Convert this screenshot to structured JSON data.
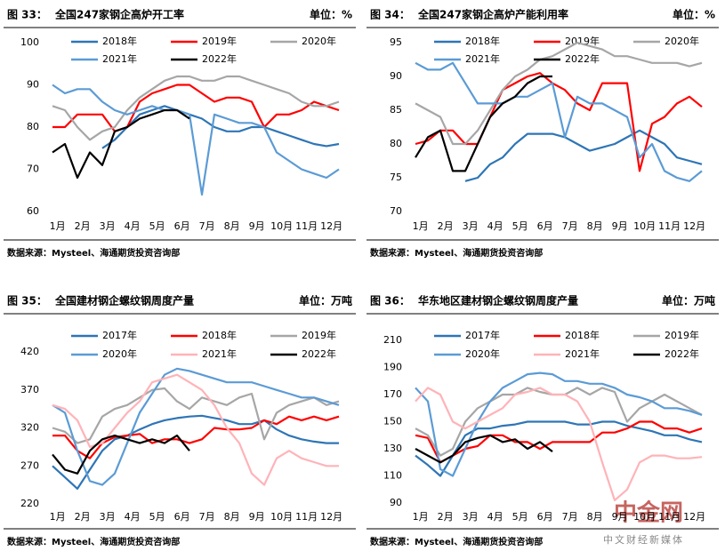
{
  "chart_data": [
    {
      "type": "line",
      "figure_label": "图 33：",
      "title": "全国247家钢企高炉开工率",
      "unit": "单位：%",
      "source": "数据来源：Mysteel、海通期货投资咨询部",
      "categories": [
        "1月",
        null,
        "2月",
        null,
        "3月",
        null,
        "4月",
        null,
        "5月",
        null,
        "6月",
        null,
        "7月",
        null,
        "8月",
        null,
        "9月",
        null,
        "10月",
        null,
        "11月",
        null,
        "12月",
        null
      ],
      "ylim": [
        60,
        100
      ],
      "yticks": [
        60,
        70,
        80,
        90,
        100
      ],
      "grid": false,
      "series": [
        {
          "name": "2018年",
          "color": "#2e75b6",
          "values": [
            null,
            null,
            null,
            null,
            75,
            77,
            80,
            83,
            84,
            85,
            84,
            83,
            82,
            80,
            79,
            79,
            80,
            80,
            79,
            78,
            77,
            76,
            75.5,
            76
          ]
        },
        {
          "name": "2019年",
          "color": "#ff0000",
          "values": [
            80,
            80,
            83,
            83,
            83,
            79,
            80,
            86,
            88,
            89,
            90,
            90,
            88,
            86,
            87,
            87,
            86,
            80,
            83,
            83,
            84,
            86,
            85,
            84
          ]
        },
        {
          "name": "2020年",
          "color": "#a6a6a6",
          "values": [
            85,
            84,
            80,
            77,
            79,
            80,
            84,
            87,
            89,
            91,
            92,
            92,
            91,
            91,
            92,
            92,
            91,
            90,
            89,
            88,
            86,
            85,
            85,
            86
          ]
        },
        {
          "name": "2021年",
          "color": "#5b9bd5",
          "values": [
            90,
            88,
            89,
            89,
            86,
            84,
            83,
            84,
            85,
            84,
            84,
            83,
            64,
            83,
            82,
            81,
            81,
            80,
            74,
            72,
            70,
            69,
            68,
            70
          ]
        },
        {
          "name": "2022年",
          "color": "#000000",
          "values": [
            74,
            76,
            68,
            74,
            71,
            79,
            80,
            82,
            83,
            84,
            84,
            82,
            null,
            null,
            null,
            null,
            null,
            null,
            null,
            null,
            null,
            null,
            null,
            null
          ]
        }
      ]
    },
    {
      "type": "line",
      "figure_label": "图 34：",
      "title": "全国247家钢企高炉产能利用率",
      "unit": "单位：%",
      "source": "数据来源：Mysteel、海通期货投资咨询部",
      "categories": [
        "1月",
        null,
        "2月",
        null,
        "3月",
        null,
        "4月",
        null,
        "5月",
        null,
        "6月",
        null,
        "7月",
        null,
        "8月",
        null,
        "9月",
        null,
        "10月",
        null,
        "11月",
        null,
        "12月",
        null
      ],
      "ylim": [
        70,
        95
      ],
      "yticks": [
        70,
        75,
        80,
        85,
        90,
        95
      ],
      "grid": false,
      "series": [
        {
          "name": "2018年",
          "color": "#2e75b6",
          "values": [
            null,
            null,
            null,
            null,
            74.5,
            75,
            77,
            78,
            80,
            81.5,
            81.5,
            81.5,
            81,
            80,
            79,
            79.5,
            80,
            81,
            82,
            81,
            80,
            78,
            77.5,
            77
          ]
        },
        {
          "name": "2019年",
          "color": "#ff0000",
          "values": [
            80,
            80.5,
            82,
            82,
            80,
            80,
            84,
            88,
            89,
            90,
            90.5,
            89,
            88,
            86,
            85,
            89,
            89,
            89,
            76,
            83,
            84,
            86,
            87,
            85.5
          ]
        },
        {
          "name": "2020年",
          "color": "#a6a6a6",
          "values": [
            86,
            85,
            84,
            80,
            80,
            82,
            85,
            88,
            90,
            91,
            92.5,
            93,
            94,
            95,
            94.5,
            94,
            93,
            93,
            92.5,
            92,
            92,
            92,
            91.5,
            92
          ]
        },
        {
          "name": "2021年",
          "color": "#5b9bd5",
          "values": [
            92,
            91,
            91,
            92,
            89,
            86,
            86,
            86,
            87,
            87,
            88,
            89,
            81,
            87,
            86,
            86,
            85,
            84,
            78,
            80,
            76,
            75,
            74.5,
            76
          ]
        },
        {
          "name": "2022年",
          "color": "#000000",
          "values": [
            78,
            81,
            82,
            76,
            76,
            80,
            84,
            86,
            87,
            89,
            90,
            90,
            null,
            null,
            null,
            null,
            null,
            null,
            null,
            null,
            null,
            null,
            null,
            null
          ]
        }
      ]
    },
    {
      "type": "line",
      "figure_label": "图 35：",
      "title": "全国建材钢企螺纹钢周度产量",
      "unit": "单位：万吨",
      "source": "数据来源：Mysteel、海通期货投资咨询部",
      "categories": [
        "1月",
        null,
        "2月",
        null,
        "3月",
        null,
        "4月",
        null,
        "5月",
        null,
        "6月",
        null,
        "7月",
        null,
        "8月",
        null,
        "9月",
        null,
        "10月",
        null,
        "11月",
        null,
        "12月",
        null
      ],
      "ylim": [
        220,
        420
      ],
      "yticks": [
        220,
        270,
        320,
        370,
        420
      ],
      "grid": false,
      "series": [
        {
          "name": "2017年",
          "color": "#2e75b6",
          "values": [
            270,
            255,
            240,
            265,
            290,
            305,
            310,
            318,
            325,
            330,
            333,
            335,
            336,
            333,
            330,
            325,
            325,
            330,
            318,
            310,
            305,
            302,
            300,
            300
          ]
        },
        {
          "name": "2018年",
          "color": "#ff0000",
          "values": [
            310,
            310,
            290,
            280,
            300,
            308,
            310,
            312,
            300,
            305,
            305,
            300,
            305,
            320,
            318,
            318,
            320,
            330,
            325,
            335,
            330,
            335,
            330,
            335
          ]
        },
        {
          "name": "2019年",
          "color": "#a6a6a6",
          "values": [
            320,
            315,
            300,
            305,
            335,
            345,
            350,
            360,
            370,
            372,
            355,
            345,
            360,
            355,
            350,
            360,
            365,
            305,
            340,
            350,
            355,
            360,
            350,
            355
          ]
        },
        {
          "name": "2020年",
          "color": "#5b9bd5",
          "values": [
            350,
            340,
            290,
            250,
            245,
            260,
            300,
            340,
            365,
            390,
            398,
            395,
            390,
            385,
            380,
            380,
            380,
            375,
            370,
            365,
            360,
            360,
            355,
            350
          ]
        },
        {
          "name": "2021年",
          "color": "#ffb3b8",
          "values": [
            350,
            345,
            330,
            295,
            300,
            320,
            340,
            355,
            380,
            385,
            390,
            380,
            370,
            350,
            320,
            300,
            260,
            245,
            280,
            290,
            280,
            275,
            270,
            270
          ]
        },
        {
          "name": "2022年",
          "color": "#000000",
          "values": [
            285,
            265,
            260,
            290,
            305,
            310,
            305,
            300,
            305,
            300,
            310,
            290,
            null,
            null,
            null,
            null,
            null,
            null,
            null,
            null,
            null,
            null,
            null,
            null
          ]
        }
      ]
    },
    {
      "type": "line",
      "figure_label": "图 36：",
      "title": "华东地区建材钢企螺纹钢周度产量",
      "unit": "单位：万吨",
      "source": "数据来源：Mysteel、海通期货投资咨询部",
      "categories": [
        "1月",
        null,
        "2月",
        null,
        "3月",
        null,
        "4月",
        null,
        "5月",
        null,
        "6月",
        null,
        "7月",
        null,
        "8月",
        null,
        "9月",
        null,
        "10月",
        null,
        "11月",
        null,
        "12月",
        null
      ],
      "ylim": [
        90,
        210
      ],
      "yticks": [
        90,
        110,
        130,
        150,
        170,
        190,
        210
      ],
      "grid": false,
      "series": [
        {
          "name": "2017年",
          "color": "#2e75b6",
          "values": [
            125,
            118,
            110,
            125,
            140,
            145,
            145,
            147,
            148,
            150,
            150,
            150,
            150,
            148,
            148,
            150,
            150,
            147,
            145,
            143,
            140,
            140,
            137,
            135
          ]
        },
        {
          "name": "2018年",
          "color": "#ff0000",
          "values": [
            140,
            138,
            120,
            125,
            130,
            132,
            140,
            140,
            135,
            135,
            130,
            135,
            135,
            135,
            135,
            142,
            142,
            145,
            150,
            150,
            145,
            145,
            142,
            145
          ]
        },
        {
          "name": "2019年",
          "color": "#a6a6a6",
          "values": [
            145,
            140,
            125,
            130,
            150,
            160,
            165,
            170,
            170,
            175,
            172,
            170,
            170,
            175,
            170,
            175,
            172,
            150,
            160,
            165,
            170,
            165,
            160,
            155
          ]
        },
        {
          "name": "2020年",
          "color": "#5b9bd5",
          "values": [
            175,
            165,
            115,
            110,
            130,
            150,
            165,
            175,
            180,
            185,
            186,
            185,
            180,
            180,
            178,
            178,
            175,
            170,
            168,
            165,
            160,
            160,
            158,
            155
          ]
        },
        {
          "name": "2021年",
          "color": "#ffb3b8",
          "values": [
            165,
            175,
            170,
            150,
            145,
            150,
            155,
            160,
            170,
            172,
            175,
            170,
            170,
            165,
            150,
            120,
            92,
            100,
            120,
            125,
            125,
            123,
            123,
            124
          ]
        },
        {
          "name": "2022年",
          "color": "#000000",
          "values": [
            130,
            125,
            120,
            125,
            135,
            138,
            140,
            135,
            137,
            130,
            135,
            128,
            null,
            null,
            null,
            null,
            null,
            null,
            null,
            null,
            null,
            null,
            null,
            null
          ]
        }
      ]
    }
  ],
  "watermark": {
    "name": "中金网",
    "slogan": "中文财经新媒体"
  }
}
